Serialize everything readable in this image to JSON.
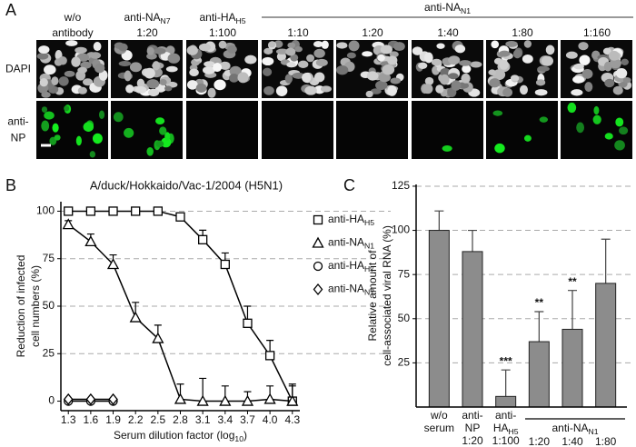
{
  "panel_a": {
    "label": "A",
    "group": {
      "label": [
        "anti-NA",
        "N1"
      ],
      "span": [
        3,
        7
      ]
    },
    "columns": [
      {
        "header": [
          "w/o",
          "antibody"
        ]
      },
      {
        "header": [
          [
            "anti-NA",
            "N7"
          ],
          "1:20"
        ]
      },
      {
        "header": [
          [
            "anti-HA",
            "H5"
          ],
          "1:100"
        ]
      },
      {
        "header": [
          "1:10"
        ]
      },
      {
        "header": [
          "1:20"
        ]
      },
      {
        "header": [
          "1:40"
        ]
      },
      {
        "header": [
          "1:80"
        ]
      },
      {
        "header": [
          "1:160"
        ]
      }
    ],
    "rows": [
      {
        "label": [
          "DAPI"
        ]
      },
      {
        "label": [
          "anti-",
          "NP"
        ]
      }
    ]
  },
  "chart_data": [
    {
      "type": "line",
      "panel": "B",
      "title": "A/duck/Hokkaido/Vac-1/2004 (H5N1)",
      "xlabel": [
        "Serum dilution factor (log",
        "10",
        ")"
      ],
      "ylabel": [
        "Reduction of infected",
        "cell numbers (%)"
      ],
      "x": [
        1.3,
        1.6,
        1.9,
        2.2,
        2.5,
        2.8,
        3.1,
        3.4,
        3.7,
        4.0,
        4.3
      ],
      "xlim": [
        1.2,
        4.4
      ],
      "xticks": [
        1.3,
        1.6,
        1.9,
        2.2,
        2.5,
        2.8,
        3.1,
        3.4,
        3.7,
        {
          "value": 4.0,
          "label": "4.0"
        },
        4.3
      ],
      "ylim": [
        -5,
        105
      ],
      "yticks": [
        0,
        25,
        50,
        75,
        100
      ],
      "grid": true,
      "series": [
        {
          "name": [
            "anti-HA",
            "H5"
          ],
          "marker": "square",
          "color": "#000000",
          "values": [
            100,
            100,
            100,
            100,
            100,
            97,
            85,
            72,
            41,
            24,
            0
          ],
          "errors": [
            0,
            0,
            0,
            0,
            0,
            2,
            5,
            6,
            9,
            8,
            8
          ]
        },
        {
          "name": [
            "anti-NA",
            "N1"
          ],
          "marker": "triangle",
          "color": "#000000",
          "values": [
            93,
            84,
            72,
            44,
            33,
            1,
            0,
            0,
            0,
            1,
            0
          ],
          "errors": [
            2,
            4,
            5,
            8,
            7,
            8,
            12,
            8,
            5,
            7,
            9
          ]
        },
        {
          "name": [
            "anti-HA",
            "H7"
          ],
          "marker": "circle",
          "color": "#000000",
          "values": [
            0,
            0,
            0,
            null,
            null,
            null,
            null,
            null,
            null,
            null,
            null
          ]
        },
        {
          "name": [
            "anti-NA",
            "N7"
          ],
          "marker": "diamond",
          "color": "#000000",
          "values": [
            1,
            1,
            1,
            null,
            null,
            null,
            null,
            null,
            null,
            null,
            null
          ]
        }
      ]
    },
    {
      "type": "bar",
      "panel": "C",
      "ylabel": [
        "Relative amount of",
        "cell-associated viral RNA (%)"
      ],
      "categories": [
        [
          "w/o",
          "serum"
        ],
        [
          "anti-",
          "NP",
          "1:20"
        ],
        [
          "anti-",
          [
            "HA",
            "H5"
          ],
          "1:100"
        ],
        [
          "1:20"
        ],
        [
          "1:40"
        ],
        [
          "1:80"
        ]
      ],
      "groups": [
        {
          "label": [
            "anti-NA",
            "N1"
          ],
          "span": [
            3,
            5
          ]
        }
      ],
      "values": [
        100,
        88,
        6,
        37,
        44,
        70
      ],
      "errors": [
        11,
        12,
        15,
        17,
        22,
        25
      ],
      "annotations": [
        null,
        null,
        "***",
        "**",
        "**",
        null
      ],
      "color": "#8c8c8c",
      "ylim": [
        0,
        126
      ],
      "yticks": [
        25,
        50,
        75,
        100,
        125
      ],
      "grid": true
    }
  ]
}
